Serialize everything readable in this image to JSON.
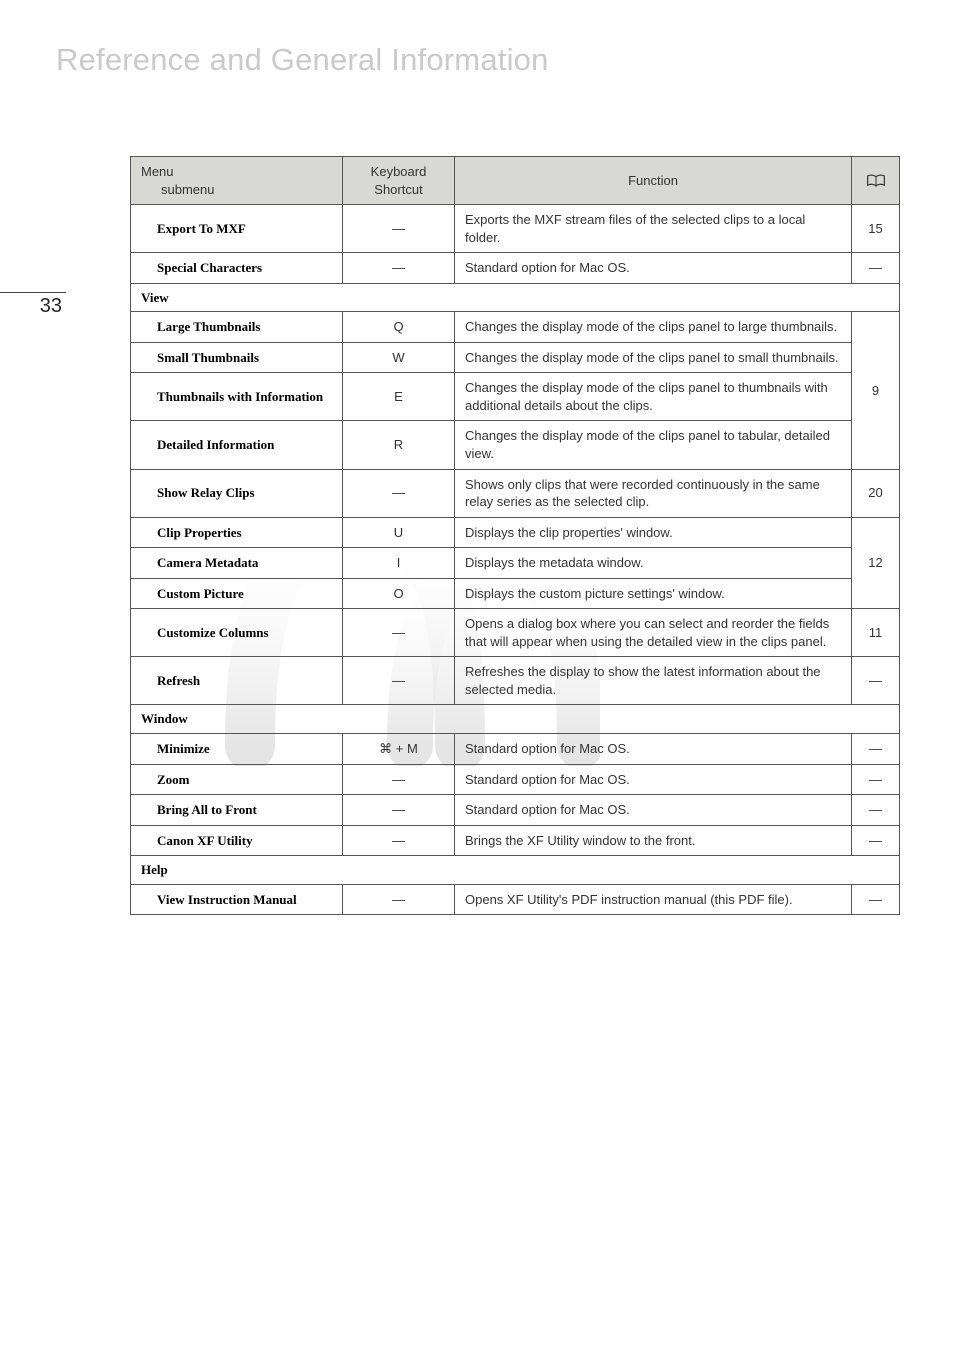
{
  "pageNumber": "33",
  "heading": "Reference and General Information",
  "headers": {
    "menuLine1": "Menu",
    "menuLine2": "submenu",
    "keyboard": "Keyboard Shortcut",
    "function": "Function"
  },
  "rows": [
    {
      "type": "item",
      "menu": "Export To MXF",
      "kb": "—",
      "fn": "Exports the MXF stream files of the selected clips to a local folder.",
      "ref": "15"
    },
    {
      "type": "item",
      "menu": "Special Characters",
      "kb": "—",
      "fn": "Standard option for Mac OS.",
      "ref": "—"
    },
    {
      "type": "section",
      "label": "View"
    },
    {
      "type": "item",
      "menu": "Large Thumbnails",
      "kb": "Q",
      "fn": "Changes the display mode of the clips panel to large thumbnails.",
      "refGroupStart": true
    },
    {
      "type": "item",
      "menu": "Small Thumbnails",
      "kb": "W",
      "fn": "Changes the display mode of the clips panel to small thumbnails."
    },
    {
      "type": "item",
      "menu": "Thumbnails with Information",
      "kb": "E",
      "fn": "Changes the display mode of the clips panel to thumbnails with additional details about the clips."
    },
    {
      "type": "item",
      "menu": "Detailed Information",
      "kb": "R",
      "fn": "Changes the display mode of the clips panel to tabular, detailed view.",
      "refGroupEnd": true,
      "refGroupValue": "9"
    },
    {
      "type": "item",
      "menu": "Show Relay Clips",
      "kb": "—",
      "fn": "Shows only clips that were recorded continuously in the same relay series as the selected clip.",
      "ref": "20"
    },
    {
      "type": "item",
      "menu": "Clip Properties",
      "kb": "U",
      "fn": "Displays the clip properties' window.",
      "refGroupStart": true
    },
    {
      "type": "item",
      "menu": "Camera Metadata",
      "kb": "I",
      "fn": "Displays the metadata window."
    },
    {
      "type": "item",
      "menu": "Custom Picture",
      "kb": "O",
      "fn": "Displays the custom picture settings' window.",
      "refGroupEnd": true,
      "refGroupValue": "12"
    },
    {
      "type": "item",
      "menu": "Customize Columns",
      "kb": "—",
      "fn": "Opens a dialog box where you can select and reorder the fields that will appear when using the detailed view in the clips panel.",
      "ref": "11"
    },
    {
      "type": "item",
      "menu": "Refresh",
      "kb": "—",
      "fn": "Refreshes the display to show the latest information about the selected media.",
      "ref": "—"
    },
    {
      "type": "section",
      "label": "Window"
    },
    {
      "type": "item",
      "menu": "Minimize",
      "kb": "⌘ + M",
      "fn": "Standard option for Mac OS.",
      "ref": "—"
    },
    {
      "type": "item",
      "menu": "Zoom",
      "kb": "—",
      "fn": "Standard option for Mac OS.",
      "ref": "—"
    },
    {
      "type": "item",
      "menu": "Bring All to Front",
      "kb": "—",
      "fn": "Standard option for Mac OS.",
      "ref": "—"
    },
    {
      "type": "item",
      "menu": "Canon XF Utility",
      "kb": "—",
      "fn": "Brings the XF Utility window to the front.",
      "ref": "—"
    },
    {
      "type": "section",
      "label": "Help"
    },
    {
      "type": "item",
      "menu": "View Instruction Manual",
      "kb": "—",
      "fn": "Opens XF Utility's PDF instruction manual (this PDF file).",
      "ref": "—"
    }
  ],
  "style": {
    "headerBg": "#d8d8d4",
    "borderColor": "#555555",
    "headingColor": "#c9cacb",
    "textColor": "#333333"
  }
}
